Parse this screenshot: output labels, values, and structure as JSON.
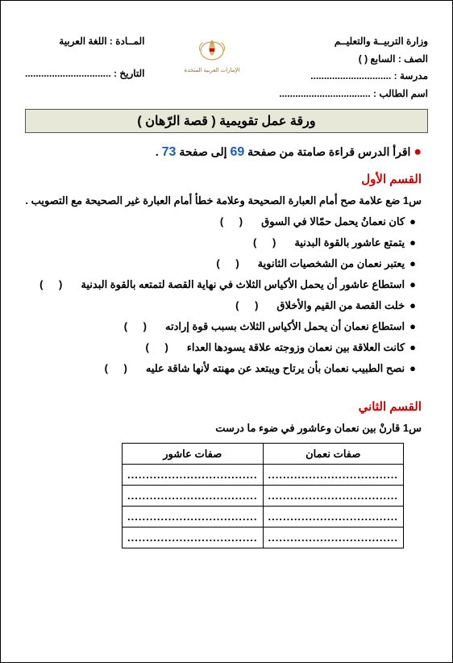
{
  "header": {
    "ministry": "وزارة التربيــة  والتعليــم",
    "grade_label": "الصف : السابع",
    "grade_paren": "(    )",
    "school_label": "مدرسة :",
    "school_dots": "..............................",
    "student_label": "اسم الطالب :",
    "student_dots": "..................................",
    "subject_label": "المــادة : اللغة العربية",
    "date_label": "التاريخ :",
    "date_dots": "................................",
    "emblem_caption": "الإمارات العربية المتحدة"
  },
  "title_bar": "ورقة عمل تقويمية ( قصة الرّهان )",
  "instruction": {
    "bullet": "●",
    "text_before": "اقرأ الدرس قراءة صامتة من صفحة",
    "page1": "69",
    "text_mid": "إلى صفحة",
    "page2": "73",
    "period": "."
  },
  "section1_title": "القسم الأول",
  "q1_intro": "س1 ضع علامة صح أمام العبارة الصحيحة وعلامة خطأ أمام العبارة غير الصحيحة مع التصويب .",
  "items": [
    "كان نعمانُ يحمل حمّالا في السوق",
    "يتمتع عاشور بالقوة البدنية",
    "يعتبر نعمان من الشخصيات الثانوية",
    "استطاع عاشور أن يحمل الأكياس الثلاث في نهاية القصة لتمتعه بالقوة البدنية",
    "خلت القصة من القيم والأخلاق",
    "استطاع نعمان أن يحمل الأكياس الثلاث بسبب قوة إرادته",
    "كانت العلاقة بين نعمان وزوجته علاقة يسودها العداء",
    "نصح الطبيب نعمان بأن يرتاح ويبتعد عن مهنته لأنها شاقة عليه"
  ],
  "paren_text": "(     )",
  "section2_title": "القسم الثاني",
  "q2_text": "س1 قارنْ بين نعمان وعاشور في ضوء ما درست",
  "table": {
    "col1": "صفات نعمان",
    "col2": "صفات عاشور",
    "cell_dots": "..................................."
  },
  "colors": {
    "red": "#d00000",
    "blue": "#1a5fb4",
    "title_bg": "#e8e8d8",
    "gold": "#c9a050"
  }
}
